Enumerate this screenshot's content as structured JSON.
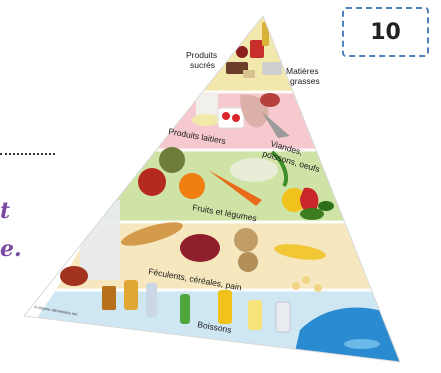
{
  "badge": {
    "number": "10"
  },
  "side_fragments": {
    "line1": "t",
    "line2": "e."
  },
  "pyramid": {
    "tiers": [
      {
        "key": "sucres_gras",
        "labels": [
          "Produits",
          "sucrés",
          "Matières",
          "grasses"
        ]
      },
      {
        "key": "laitiers_viandes",
        "labels": [
          "Produits laitiers",
          "Viandes,",
          "poissons, oeufs"
        ]
      },
      {
        "key": "fruits_legumes",
        "labels": [
          "Fruits et légumes"
        ]
      },
      {
        "key": "feculents",
        "labels": [
          "Féculents, céréales, pain"
        ]
      },
      {
        "key": "boissons",
        "labels": [
          "Boissons"
        ]
      }
    ],
    "credit": "© regime-alimentaire.net"
  },
  "colors": {
    "tier_top": "#f3e8ac",
    "tier_pink": "#f6c9cf",
    "tier_green": "#cfe3a6",
    "tier_beige": "#f7e7be",
    "tier_blue": "#cfe6f3",
    "water": "#2a8bd0",
    "badge_border": "#4f81bd",
    "side_text": "#7b4ba3"
  }
}
